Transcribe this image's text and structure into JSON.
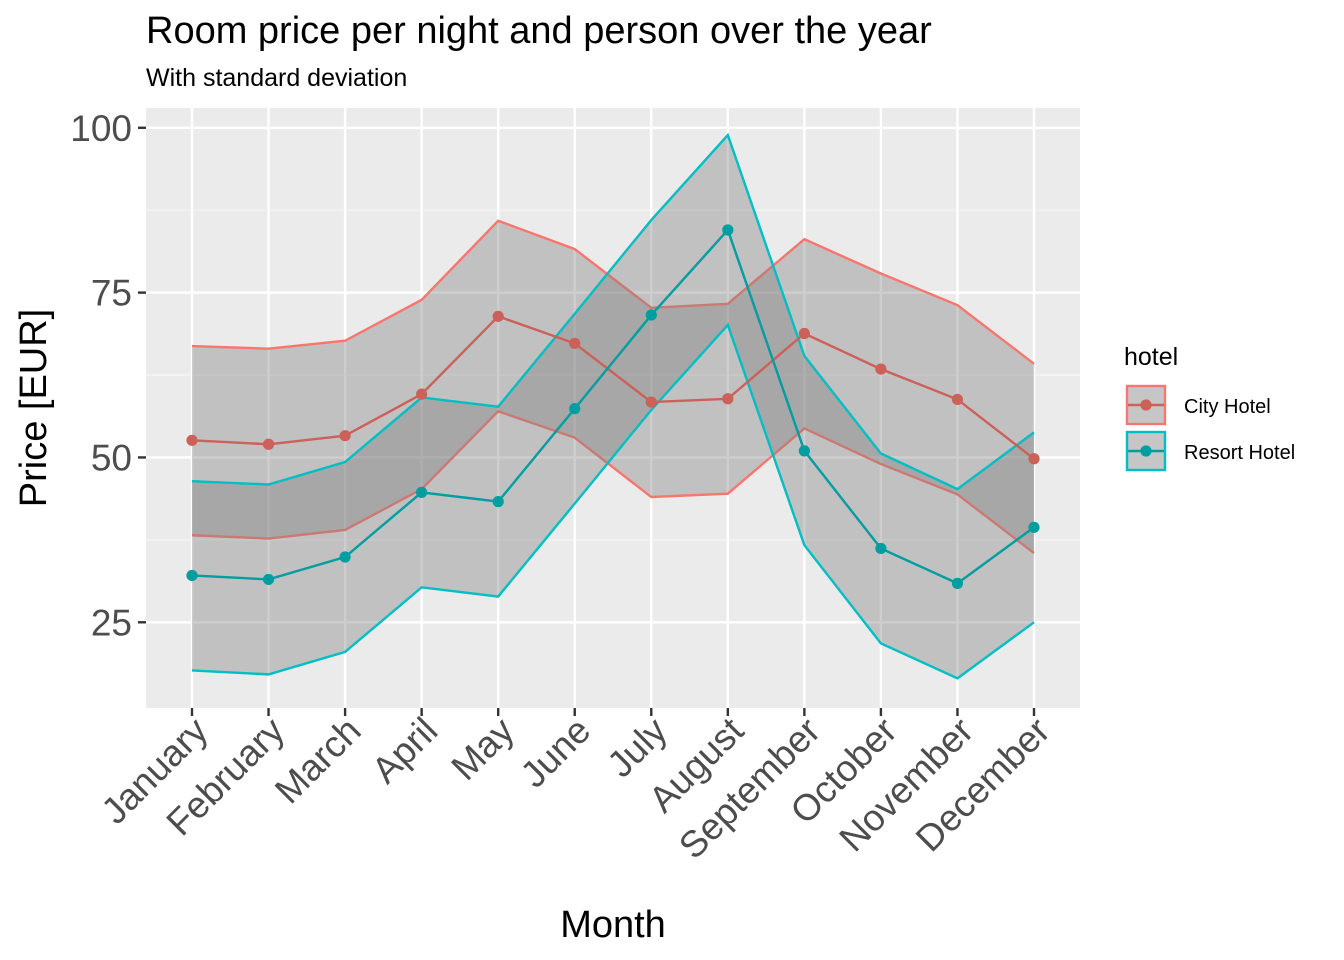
{
  "chart_data": {
    "type": "line",
    "title": "Room price per night and person over the year",
    "subtitle": "With standard deviation",
    "xlabel": "Month",
    "ylabel": "Price [EUR]",
    "categories": [
      "January",
      "February",
      "March",
      "April",
      "May",
      "June",
      "July",
      "August",
      "September",
      "October",
      "November",
      "December"
    ],
    "ylim": [
      12,
      103
    ],
    "yticks": [
      25,
      50,
      75,
      100
    ],
    "grid": true,
    "legend": {
      "title": "hotel",
      "position": "right",
      "entries": [
        "City Hotel",
        "Resort Hotel"
      ]
    },
    "series": [
      {
        "name": "City Hotel",
        "color": "#F8766D",
        "values": [
          52.6,
          52.0,
          53.3,
          59.6,
          71.4,
          67.3,
          58.4,
          58.9,
          68.8,
          63.4,
          58.8,
          49.8
        ],
        "upper": [
          66.9,
          66.5,
          67.7,
          73.9,
          85.9,
          81.6,
          72.7,
          73.3,
          83.1,
          77.9,
          73.1,
          64.2
        ],
        "lower": [
          38.2,
          37.7,
          39.0,
          45.2,
          57.0,
          53.0,
          44.0,
          44.5,
          54.4,
          49.0,
          44.4,
          35.5
        ]
      },
      {
        "name": "Resort Hotel",
        "color": "#00BFC4",
        "values": [
          32.1,
          31.5,
          34.9,
          44.7,
          43.3,
          57.4,
          71.6,
          84.5,
          51.0,
          36.2,
          30.9,
          39.4
        ],
        "upper": [
          46.4,
          45.9,
          49.3,
          59.1,
          57.7,
          71.8,
          86.0,
          98.9,
          65.4,
          50.6,
          45.2,
          53.8
        ],
        "lower": [
          17.7,
          17.1,
          20.5,
          30.3,
          28.9,
          43.0,
          57.2,
          70.1,
          36.7,
          21.8,
          16.5,
          25.0
        ]
      }
    ]
  }
}
